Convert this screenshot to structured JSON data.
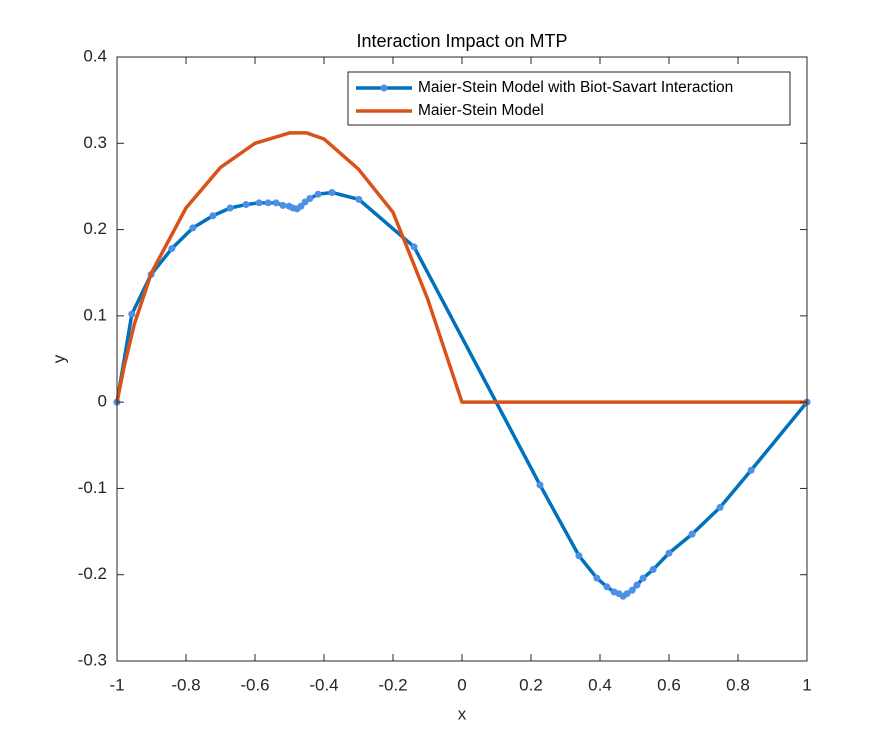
{
  "chart_data": {
    "type": "line",
    "title": "Interaction Impact on MTP",
    "x_label": "x",
    "y_label": "y",
    "xlim": [
      -1,
      1
    ],
    "ylim": [
      -0.3,
      0.4
    ],
    "xticks": [
      -1,
      -0.8,
      -0.6,
      -0.4,
      -0.2,
      0,
      0.2,
      0.4,
      0.6,
      0.8,
      1
    ],
    "yticks": [
      -0.3,
      -0.2,
      -0.1,
      0,
      0.1,
      0.2,
      0.3,
      0.4
    ],
    "legend": "upper right",
    "series": [
      {
        "name": "Maier-Stein Model with Biot-Savart Interaction",
        "color": "#0072bd",
        "marker_color": "#4d90e8",
        "markers": true,
        "x": [
          -1,
          -0.957,
          -0.901,
          -0.841,
          -0.78,
          -0.722,
          -0.672,
          -0.626,
          -0.588,
          -0.562,
          -0.539,
          -0.519,
          -0.501,
          -0.49,
          -0.478,
          -0.467,
          -0.455,
          -0.441,
          -0.417,
          -0.377,
          -0.299,
          -0.139,
          0.226,
          0.339,
          0.391,
          0.42,
          0.441,
          0.455,
          0.467,
          0.478,
          0.493,
          0.507,
          0.525,
          0.554,
          0.6,
          0.667,
          0.748,
          0.838,
          1
        ],
        "values": [
          0,
          0.102,
          0.148,
          0.178,
          0.202,
          0.216,
          0.225,
          0.229,
          0.231,
          0.231,
          0.231,
          0.228,
          0.227,
          0.225,
          0.224,
          0.227,
          0.232,
          0.236,
          0.241,
          0.243,
          0.235,
          0.18,
          -0.096,
          -0.178,
          -0.204,
          -0.214,
          -0.22,
          -0.222,
          -0.225,
          -0.222,
          -0.218,
          -0.212,
          -0.204,
          -0.194,
          -0.175,
          -0.153,
          -0.122,
          -0.079,
          0
        ]
      },
      {
        "name": "Maier-Stein Model",
        "color": "#d95319",
        "markers": false,
        "x": [
          -1,
          -0.98,
          -0.95,
          -0.9,
          -0.8,
          -0.7,
          -0.6,
          -0.5,
          -0.45,
          -0.4,
          -0.3,
          -0.2,
          -0.1,
          -0.05,
          0,
          1
        ],
        "values": [
          0,
          0.04,
          0.09,
          0.15,
          0.225,
          0.272,
          0.3,
          0.312,
          0.312,
          0.305,
          0.27,
          0.22,
          0.12,
          0.06,
          0,
          0
        ]
      }
    ]
  }
}
